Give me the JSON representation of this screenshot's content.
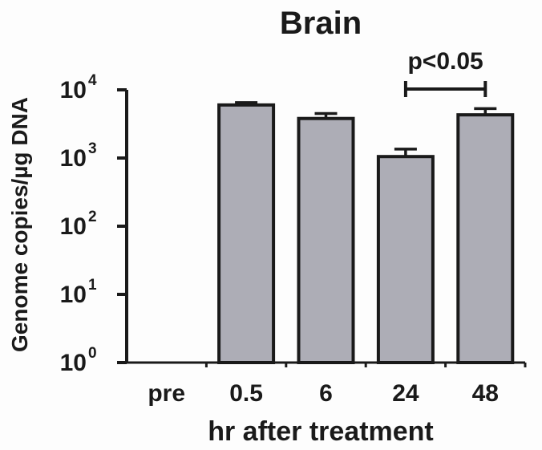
{
  "chart_data": {
    "type": "bar",
    "title": "Brain",
    "xlabel": "hr after treatment",
    "ylabel": "Genome copies/µg DNA",
    "yscale": "log",
    "ylim": [
      1,
      10000
    ],
    "yticks": [
      {
        "base": "10",
        "exp": "0",
        "value": 1
      },
      {
        "base": "10",
        "exp": "1",
        "value": 10
      },
      {
        "base": "10",
        "exp": "2",
        "value": 100
      },
      {
        "base": "10",
        "exp": "3",
        "value": 1000
      },
      {
        "base": "10",
        "exp": "4",
        "value": 10000
      }
    ],
    "categories": [
      "pre",
      "0.5",
      "6",
      "24",
      "48"
    ],
    "values": [
      null,
      6000,
      3800,
      1050,
      4300
    ],
    "error_upper": [
      null,
      6500,
      4500,
      1350,
      5300
    ],
    "bar_color": "#adadb6",
    "annotation": {
      "text": "p<0.05",
      "from": "24",
      "to": "48"
    },
    "grid": false
  }
}
